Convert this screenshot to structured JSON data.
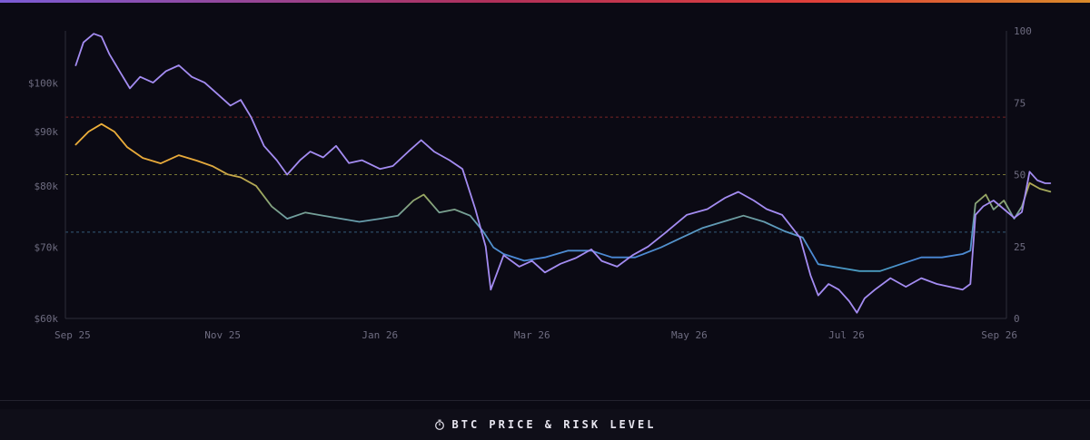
{
  "footer": {
    "title": "BTC PRICE & RISK LEVEL",
    "icon": "stopwatch-icon"
  },
  "chart_data": {
    "type": "line",
    "title": "BTC PRICE & RISK LEVEL",
    "x_ticks": [
      "Sep 25",
      "Nov 25",
      "Jan 26",
      "Mar 26",
      "May 26",
      "Jul 26",
      "Sep 26"
    ],
    "x_range": [
      "2025-09-01",
      "2026-09-01"
    ],
    "y_left": {
      "scale": "log",
      "ticks": [
        "$60k",
        "$70k",
        "$80k",
        "$90k",
        "$100k"
      ],
      "tick_values": [
        60000,
        70000,
        80000,
        90000,
        100000
      ]
    },
    "y_right": {
      "ticks": [
        "0",
        "25",
        "50",
        "75",
        "100"
      ],
      "tick_values": [
        0,
        25,
        50,
        75,
        100
      ],
      "range": [
        0,
        100
      ]
    },
    "reference_lines": [
      {
        "axis": "right",
        "value": 30,
        "color": "#3a6b8c"
      },
      {
        "axis": "right",
        "value": 50,
        "color": "#8a8a3a"
      },
      {
        "axis": "right",
        "value": 70,
        "color": "#8c2a2a"
      }
    ],
    "series": [
      {
        "axis": "left",
        "color_scale": "risk",
        "points": [
          [
            "2025-09-05",
            87500
          ],
          [
            "2025-09-10",
            90000
          ],
          [
            "2025-09-15",
            91500
          ],
          [
            "2025-09-20",
            90000
          ],
          [
            "2025-09-25",
            87000
          ],
          [
            "2025-10-01",
            85000
          ],
          [
            "2025-10-08",
            84000
          ],
          [
            "2025-10-15",
            85500
          ],
          [
            "2025-10-22",
            84500
          ],
          [
            "2025-10-28",
            83500
          ],
          [
            "2025-11-03",
            82000
          ],
          [
            "2025-11-08",
            81500
          ],
          [
            "2025-11-14",
            80000
          ],
          [
            "2025-11-20",
            76500
          ],
          [
            "2025-11-26",
            74500
          ],
          [
            "2025-12-03",
            75500
          ],
          [
            "2025-12-10",
            75000
          ],
          [
            "2025-12-17",
            74500
          ],
          [
            "2025-12-24",
            74000
          ],
          [
            "2026-01-01",
            74500
          ],
          [
            "2026-01-08",
            75000
          ],
          [
            "2026-01-14",
            77500
          ],
          [
            "2026-01-18",
            78500
          ],
          [
            "2026-01-24",
            75500
          ],
          [
            "2026-01-30",
            76000
          ],
          [
            "2026-02-05",
            75000
          ],
          [
            "2026-02-10",
            72500
          ],
          [
            "2026-02-14",
            70000
          ],
          [
            "2026-02-18",
            69000
          ],
          [
            "2026-02-26",
            68000
          ],
          [
            "2026-03-06",
            68500
          ],
          [
            "2026-03-15",
            69500
          ],
          [
            "2026-03-24",
            69500
          ],
          [
            "2026-04-01",
            68500
          ],
          [
            "2026-04-10",
            68500
          ],
          [
            "2026-04-20",
            70000
          ],
          [
            "2026-04-28",
            71500
          ],
          [
            "2026-05-06",
            73000
          ],
          [
            "2026-05-14",
            74000
          ],
          [
            "2026-05-22",
            75000
          ],
          [
            "2026-05-30",
            74000
          ],
          [
            "2026-06-07",
            72500
          ],
          [
            "2026-06-14",
            71500
          ],
          [
            "2026-06-20",
            67500
          ],
          [
            "2026-06-28",
            67000
          ],
          [
            "2026-07-06",
            66500
          ],
          [
            "2026-07-14",
            66500
          ],
          [
            "2026-07-22",
            67500
          ],
          [
            "2026-07-30",
            68500
          ],
          [
            "2026-08-07",
            68500
          ],
          [
            "2026-08-15",
            69000
          ],
          [
            "2026-08-18",
            69500
          ],
          [
            "2026-08-20",
            77000
          ],
          [
            "2026-08-24",
            78500
          ],
          [
            "2026-08-27",
            76000
          ],
          [
            "2026-08-31",
            77500
          ],
          [
            "2026-09-04",
            74500
          ],
          [
            "2026-09-07",
            76500
          ],
          [
            "2026-09-10",
            80500
          ],
          [
            "2026-09-14",
            79500
          ],
          [
            "2026-09-18",
            79000
          ]
        ]
      },
      {
        "axis": "right",
        "color": "#a48cf2",
        "points": [
          [
            "2025-09-05",
            88
          ],
          [
            "2025-09-08",
            96
          ],
          [
            "2025-09-12",
            99
          ],
          [
            "2025-09-15",
            98
          ],
          [
            "2025-09-18",
            92
          ],
          [
            "2025-09-22",
            86
          ],
          [
            "2025-09-26",
            80
          ],
          [
            "2025-09-30",
            84
          ],
          [
            "2025-10-05",
            82
          ],
          [
            "2025-10-10",
            86
          ],
          [
            "2025-10-15",
            88
          ],
          [
            "2025-10-20",
            84
          ],
          [
            "2025-10-25",
            82
          ],
          [
            "2025-10-30",
            78
          ],
          [
            "2025-11-04",
            74
          ],
          [
            "2025-11-08",
            76
          ],
          [
            "2025-11-12",
            70
          ],
          [
            "2025-11-17",
            60
          ],
          [
            "2025-11-22",
            55
          ],
          [
            "2025-11-26",
            50
          ],
          [
            "2025-12-01",
            55
          ],
          [
            "2025-12-05",
            58
          ],
          [
            "2025-12-10",
            56
          ],
          [
            "2025-12-15",
            60
          ],
          [
            "2025-12-20",
            54
          ],
          [
            "2025-12-25",
            55
          ],
          [
            "2026-01-01",
            52
          ],
          [
            "2026-01-06",
            53
          ],
          [
            "2026-01-12",
            58
          ],
          [
            "2026-01-17",
            62
          ],
          [
            "2026-01-22",
            58
          ],
          [
            "2026-01-28",
            55
          ],
          [
            "2026-02-02",
            52
          ],
          [
            "2026-02-07",
            38
          ],
          [
            "2026-02-11",
            25
          ],
          [
            "2026-02-13",
            10
          ],
          [
            "2026-02-18",
            22
          ],
          [
            "2026-02-24",
            18
          ],
          [
            "2026-03-01",
            20
          ],
          [
            "2026-03-06",
            16
          ],
          [
            "2026-03-12",
            19
          ],
          [
            "2026-03-18",
            21
          ],
          [
            "2026-03-24",
            24
          ],
          [
            "2026-03-28",
            20
          ],
          [
            "2026-04-03",
            18
          ],
          [
            "2026-04-09",
            22
          ],
          [
            "2026-04-15",
            25
          ],
          [
            "2026-04-22",
            30
          ],
          [
            "2026-04-30",
            36
          ],
          [
            "2026-05-08",
            38
          ],
          [
            "2026-05-15",
            42
          ],
          [
            "2026-05-20",
            44
          ],
          [
            "2026-05-26",
            41
          ],
          [
            "2026-05-31",
            38
          ],
          [
            "2026-06-06",
            36
          ],
          [
            "2026-06-13",
            28
          ],
          [
            "2026-06-17",
            15
          ],
          [
            "2026-06-20",
            8
          ],
          [
            "2026-06-24",
            12
          ],
          [
            "2026-06-28",
            10
          ],
          [
            "2026-07-02",
            6
          ],
          [
            "2026-07-05",
            2
          ],
          [
            "2026-07-08",
            7
          ],
          [
            "2026-07-12",
            10
          ],
          [
            "2026-07-18",
            14
          ],
          [
            "2026-07-24",
            11
          ],
          [
            "2026-07-30",
            14
          ],
          [
            "2026-08-05",
            12
          ],
          [
            "2026-08-10",
            11
          ],
          [
            "2026-08-15",
            10
          ],
          [
            "2026-08-18",
            12
          ],
          [
            "2026-08-20",
            36
          ],
          [
            "2026-08-23",
            39
          ],
          [
            "2026-08-27",
            41
          ],
          [
            "2026-08-31",
            38
          ],
          [
            "2026-09-04",
            35
          ],
          [
            "2026-09-07",
            37
          ],
          [
            "2026-09-10",
            51
          ],
          [
            "2026-09-13",
            48
          ],
          [
            "2026-09-16",
            47
          ],
          [
            "2026-09-18",
            47
          ]
        ]
      }
    ]
  }
}
